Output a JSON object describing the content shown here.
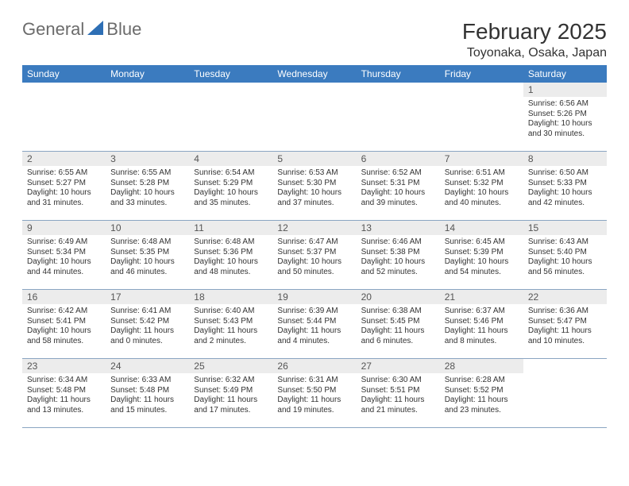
{
  "brand": {
    "word1": "General",
    "word2": "Blue"
  },
  "header": {
    "month_title": "February 2025",
    "location": "Toyonaka, Osaka, Japan"
  },
  "colors": {
    "header_bar": "#3b7bbf",
    "row_divider": "#8aa5c2",
    "daynum_bg": "#ececec",
    "text": "#333333",
    "logo_text": "#6b6b6b",
    "logo_accent": "#2e6fb5"
  },
  "day_names": [
    "Sunday",
    "Monday",
    "Tuesday",
    "Wednesday",
    "Thursday",
    "Friday",
    "Saturday"
  ],
  "labels": {
    "sunrise": "Sunrise:",
    "sunset": "Sunset:",
    "daylight": "Daylight:"
  },
  "weeks": [
    [
      null,
      null,
      null,
      null,
      null,
      null,
      {
        "n": "1",
        "sr": "6:56 AM",
        "ss": "5:26 PM",
        "dl": "10 hours and 30 minutes."
      }
    ],
    [
      {
        "n": "2",
        "sr": "6:55 AM",
        "ss": "5:27 PM",
        "dl": "10 hours and 31 minutes."
      },
      {
        "n": "3",
        "sr": "6:55 AM",
        "ss": "5:28 PM",
        "dl": "10 hours and 33 minutes."
      },
      {
        "n": "4",
        "sr": "6:54 AM",
        "ss": "5:29 PM",
        "dl": "10 hours and 35 minutes."
      },
      {
        "n": "5",
        "sr": "6:53 AM",
        "ss": "5:30 PM",
        "dl": "10 hours and 37 minutes."
      },
      {
        "n": "6",
        "sr": "6:52 AM",
        "ss": "5:31 PM",
        "dl": "10 hours and 39 minutes."
      },
      {
        "n": "7",
        "sr": "6:51 AM",
        "ss": "5:32 PM",
        "dl": "10 hours and 40 minutes."
      },
      {
        "n": "8",
        "sr": "6:50 AM",
        "ss": "5:33 PM",
        "dl": "10 hours and 42 minutes."
      }
    ],
    [
      {
        "n": "9",
        "sr": "6:49 AM",
        "ss": "5:34 PM",
        "dl": "10 hours and 44 minutes."
      },
      {
        "n": "10",
        "sr": "6:48 AM",
        "ss": "5:35 PM",
        "dl": "10 hours and 46 minutes."
      },
      {
        "n": "11",
        "sr": "6:48 AM",
        "ss": "5:36 PM",
        "dl": "10 hours and 48 minutes."
      },
      {
        "n": "12",
        "sr": "6:47 AM",
        "ss": "5:37 PM",
        "dl": "10 hours and 50 minutes."
      },
      {
        "n": "13",
        "sr": "6:46 AM",
        "ss": "5:38 PM",
        "dl": "10 hours and 52 minutes."
      },
      {
        "n": "14",
        "sr": "6:45 AM",
        "ss": "5:39 PM",
        "dl": "10 hours and 54 minutes."
      },
      {
        "n": "15",
        "sr": "6:43 AM",
        "ss": "5:40 PM",
        "dl": "10 hours and 56 minutes."
      }
    ],
    [
      {
        "n": "16",
        "sr": "6:42 AM",
        "ss": "5:41 PM",
        "dl": "10 hours and 58 minutes."
      },
      {
        "n": "17",
        "sr": "6:41 AM",
        "ss": "5:42 PM",
        "dl": "11 hours and 0 minutes."
      },
      {
        "n": "18",
        "sr": "6:40 AM",
        "ss": "5:43 PM",
        "dl": "11 hours and 2 minutes."
      },
      {
        "n": "19",
        "sr": "6:39 AM",
        "ss": "5:44 PM",
        "dl": "11 hours and 4 minutes."
      },
      {
        "n": "20",
        "sr": "6:38 AM",
        "ss": "5:45 PM",
        "dl": "11 hours and 6 minutes."
      },
      {
        "n": "21",
        "sr": "6:37 AM",
        "ss": "5:46 PM",
        "dl": "11 hours and 8 minutes."
      },
      {
        "n": "22",
        "sr": "6:36 AM",
        "ss": "5:47 PM",
        "dl": "11 hours and 10 minutes."
      }
    ],
    [
      {
        "n": "23",
        "sr": "6:34 AM",
        "ss": "5:48 PM",
        "dl": "11 hours and 13 minutes."
      },
      {
        "n": "24",
        "sr": "6:33 AM",
        "ss": "5:48 PM",
        "dl": "11 hours and 15 minutes."
      },
      {
        "n": "25",
        "sr": "6:32 AM",
        "ss": "5:49 PM",
        "dl": "11 hours and 17 minutes."
      },
      {
        "n": "26",
        "sr": "6:31 AM",
        "ss": "5:50 PM",
        "dl": "11 hours and 19 minutes."
      },
      {
        "n": "27",
        "sr": "6:30 AM",
        "ss": "5:51 PM",
        "dl": "11 hours and 21 minutes."
      },
      {
        "n": "28",
        "sr": "6:28 AM",
        "ss": "5:52 PM",
        "dl": "11 hours and 23 minutes."
      },
      null
    ]
  ]
}
